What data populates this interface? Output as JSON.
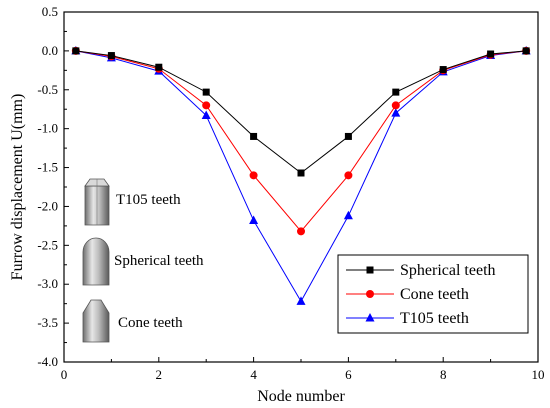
{
  "chart_data": {
    "type": "line",
    "xlabel": "Node number",
    "ylabel": "Furrow displacement U(mm)",
    "xlim": [
      0,
      10
    ],
    "ylim": [
      -4.0,
      0.5
    ],
    "xticks": [
      "0",
      "2",
      "4",
      "6",
      "8",
      "10"
    ],
    "yticks": [
      "0.5",
      "0.0",
      "-0.5",
      "-1.0",
      "-1.5",
      "-2.0",
      "-2.5",
      "-3.0",
      "-3.5",
      "-4.0"
    ],
    "legend_position": "bottom-right",
    "grid": false,
    "series": [
      {
        "name": "Spherical teeth",
        "color": "#000000",
        "marker": "square",
        "x": [
          0.25,
          1,
          2,
          3,
          4,
          5,
          6,
          7,
          8,
          9,
          9.75
        ],
        "y": [
          0.0,
          -0.06,
          -0.21,
          -0.53,
          -1.1,
          -1.57,
          -1.1,
          -0.53,
          -0.24,
          -0.04,
          0.0
        ]
      },
      {
        "name": "Cone teeth",
        "color": "#ff0000",
        "marker": "circle",
        "x": [
          0.25,
          1,
          2,
          3,
          4,
          5,
          6,
          7,
          8,
          9,
          9.75
        ],
        "y": [
          0.0,
          -0.07,
          -0.23,
          -0.7,
          -1.6,
          -2.32,
          -1.6,
          -0.7,
          -0.25,
          -0.05,
          0.0
        ]
      },
      {
        "name": "T105 teeth",
        "color": "#0000ff",
        "marker": "triangle",
        "x": [
          0.25,
          1,
          2,
          3,
          4,
          5,
          6,
          7,
          8,
          9,
          9.75
        ],
        "y": [
          0.0,
          -0.09,
          -0.26,
          -0.83,
          -2.18,
          -3.22,
          -2.12,
          -0.8,
          -0.27,
          -0.06,
          0.0
        ]
      }
    ],
    "annotations": [
      "T105 teeth",
      "Spherical teeth",
      "Cone teeth"
    ]
  }
}
